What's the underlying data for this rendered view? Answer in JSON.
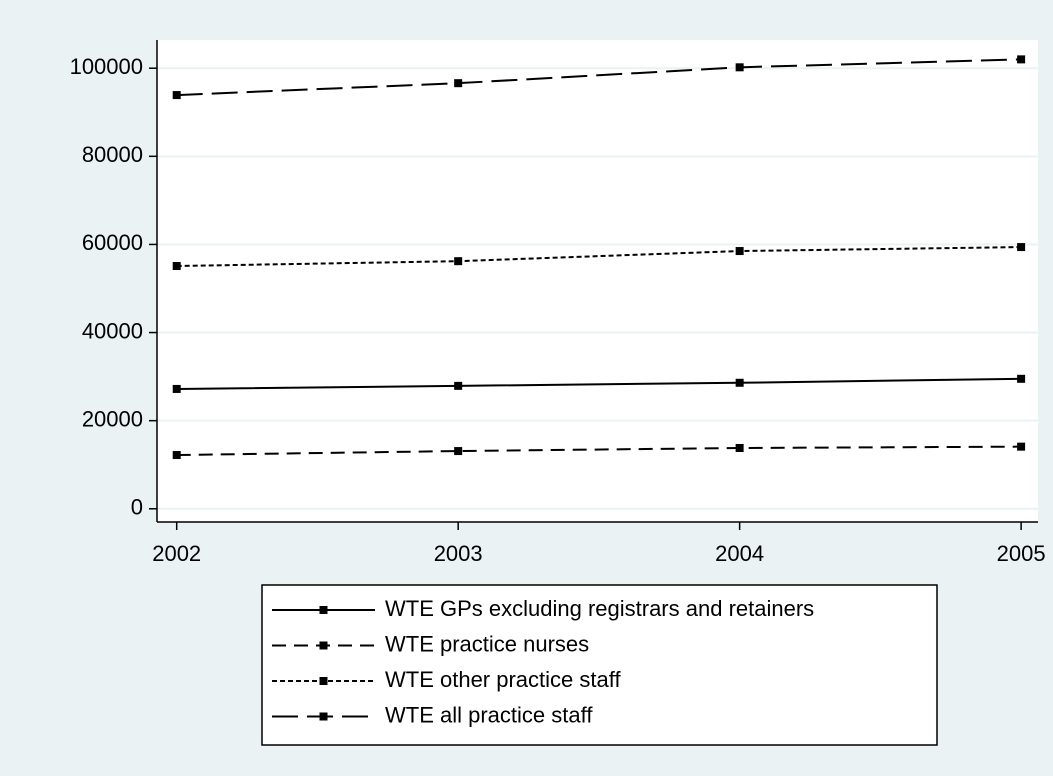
{
  "chart_data": {
    "type": "line",
    "x": [
      2002,
      2003,
      2004,
      2005
    ],
    "series": [
      {
        "name": "WTE GPs excluding registrars and retainers",
        "color": "#000000",
        "line_style": "solid",
        "values": [
          27200,
          27900,
          28600,
          29500
        ]
      },
      {
        "name": "WTE practice nurses",
        "color": "#000000",
        "line_style": "dash",
        "values": [
          12200,
          13100,
          13800,
          14100
        ]
      },
      {
        "name": "WTE other practice staff",
        "color": "#000000",
        "line_style": "shortdash",
        "values": [
          55100,
          56200,
          58500,
          59400
        ]
      },
      {
        "name": "WTE all practice staff",
        "color": "#000000",
        "line_style": "longdash",
        "values": [
          93900,
          96600,
          100200,
          102000
        ]
      }
    ],
    "xlim": [
      2001.93,
      2005.06
    ],
    "xticks": [
      2002,
      2003,
      2004,
      2005
    ],
    "ylim": [
      -3000,
      106400
    ],
    "yticks": [
      0,
      20000,
      40000,
      60000,
      80000,
      100000
    ],
    "grid": true,
    "legend": "bottom",
    "marker": "square"
  }
}
